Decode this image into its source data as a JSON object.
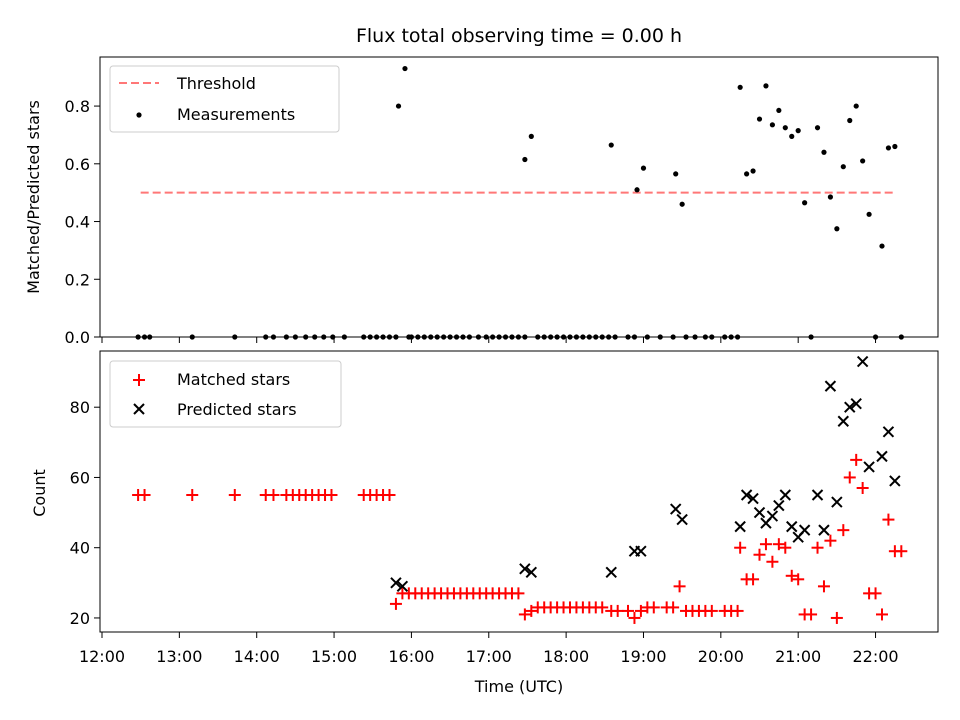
{
  "chart_data": [
    {
      "type": "scatter",
      "title": "Flux total observing time = 0.00 h",
      "xlabel": "",
      "ylabel": "Matched/Predicted stars",
      "xlim": [
        "12:00",
        "22:50"
      ],
      "ylim": [
        0,
        0.97
      ],
      "yticks": [
        "0.0",
        "0.2",
        "0.4",
        "0.6",
        "0.8"
      ],
      "legend_position": "top-left",
      "threshold": {
        "name": "Threshold",
        "value": 0.5,
        "x_range": [
          "12:30",
          "22:15"
        ],
        "color": "#ff7777",
        "style": "dashed"
      },
      "series": [
        {
          "name": "Measurements",
          "color": "#000000",
          "marker": "dot",
          "points": [
            [
              "12:28",
              0
            ],
            [
              "12:33",
              0
            ],
            [
              "12:37",
              0
            ],
            [
              "13:10",
              0
            ],
            [
              "13:43",
              0
            ],
            [
              "14:07",
              0
            ],
            [
              "14:13",
              0
            ],
            [
              "14:23",
              0
            ],
            [
              "14:30",
              0
            ],
            [
              "14:38",
              0
            ],
            [
              "14:45",
              0
            ],
            [
              "14:52",
              0
            ],
            [
              "14:59",
              0
            ],
            [
              "15:08",
              0
            ],
            [
              "15:23",
              0
            ],
            [
              "15:28",
              0
            ],
            [
              "15:33",
              0
            ],
            [
              "15:38",
              0
            ],
            [
              "15:43",
              0
            ],
            [
              "15:48",
              0
            ],
            [
              "15:50",
              0.8
            ],
            [
              "15:55",
              0.93
            ],
            [
              "15:58",
              0
            ],
            [
              "16:00",
              0
            ],
            [
              "16:05",
              0
            ],
            [
              "16:10",
              0
            ],
            [
              "16:15",
              0
            ],
            [
              "16:20",
              0
            ],
            [
              "16:25",
              0
            ],
            [
              "16:30",
              0
            ],
            [
              "16:35",
              0
            ],
            [
              "16:40",
              0
            ],
            [
              "16:45",
              0
            ],
            [
              "16:52",
              0
            ],
            [
              "16:58",
              0
            ],
            [
              "17:03",
              0
            ],
            [
              "17:08",
              0
            ],
            [
              "17:13",
              0
            ],
            [
              "17:18",
              0
            ],
            [
              "17:23",
              0
            ],
            [
              "17:28",
              0
            ],
            [
              "17:28",
              0.615
            ],
            [
              "17:33",
              0.695
            ],
            [
              "17:38",
              0
            ],
            [
              "17:43",
              0
            ],
            [
              "17:48",
              0
            ],
            [
              "17:53",
              0
            ],
            [
              "17:58",
              0
            ],
            [
              "18:03",
              0
            ],
            [
              "18:08",
              0
            ],
            [
              "18:13",
              0
            ],
            [
              "18:18",
              0
            ],
            [
              "18:23",
              0
            ],
            [
              "18:28",
              0
            ],
            [
              "18:33",
              0
            ],
            [
              "18:35",
              0.665
            ],
            [
              "18:38",
              0
            ],
            [
              "18:48",
              0
            ],
            [
              "18:53",
              0
            ],
            [
              "18:55",
              0.51
            ],
            [
              "19:00",
              0.585
            ],
            [
              "19:03",
              0
            ],
            [
              "19:13",
              0
            ],
            [
              "19:23",
              0
            ],
            [
              "19:25",
              0.565
            ],
            [
              "19:30",
              0.46
            ],
            [
              "19:33",
              0
            ],
            [
              "19:40",
              0
            ],
            [
              "19:48",
              0
            ],
            [
              "19:53",
              0
            ],
            [
              "20:03",
              0
            ],
            [
              "20:08",
              0
            ],
            [
              "20:13",
              0
            ],
            [
              "20:15",
              0.865
            ],
            [
              "20:20",
              0.565
            ],
            [
              "20:25",
              0.575
            ],
            [
              "20:30",
              0.755
            ],
            [
              "20:35",
              0.87
            ],
            [
              "20:40",
              0.735
            ],
            [
              "20:45",
              0.785
            ],
            [
              "20:50",
              0.725
            ],
            [
              "20:55",
              0.695
            ],
            [
              "21:00",
              0.715
            ],
            [
              "21:05",
              0.465
            ],
            [
              "21:10",
              0
            ],
            [
              "21:15",
              0.725
            ],
            [
              "21:20",
              0.64
            ],
            [
              "21:25",
              0.485
            ],
            [
              "21:30",
              0.375
            ],
            [
              "21:35",
              0.59
            ],
            [
              "21:40",
              0.75
            ],
            [
              "21:45",
              0.8
            ],
            [
              "21:50",
              0.61
            ],
            [
              "21:55",
              0.425
            ],
            [
              "22:00",
              0
            ],
            [
              "22:05",
              0.315
            ],
            [
              "22:10",
              0.655
            ],
            [
              "22:15",
              0.66
            ],
            [
              "22:20",
              0
            ]
          ]
        }
      ]
    },
    {
      "type": "scatter",
      "title": "",
      "xlabel": "Time (UTC)",
      "ylabel": "Count",
      "xlim": [
        "12:00",
        "22:50"
      ],
      "ylim": [
        16,
        96
      ],
      "xticks": [
        "12:00",
        "13:00",
        "14:00",
        "15:00",
        "16:00",
        "17:00",
        "18:00",
        "19:00",
        "20:00",
        "21:00",
        "22:00"
      ],
      "yticks": [
        "20",
        "40",
        "60",
        "80"
      ],
      "legend_position": "top-left",
      "series": [
        {
          "name": "Matched stars",
          "color": "#ff0000",
          "marker": "plus",
          "points": [
            [
              "12:28",
              55
            ],
            [
              "12:33",
              55
            ],
            [
              "13:10",
              55
            ],
            [
              "13:43",
              55
            ],
            [
              "14:07",
              55
            ],
            [
              "14:13",
              55
            ],
            [
              "14:23",
              55
            ],
            [
              "14:28",
              55
            ],
            [
              "14:33",
              55
            ],
            [
              "14:38",
              55
            ],
            [
              "14:43",
              55
            ],
            [
              "14:48",
              55
            ],
            [
              "14:53",
              55
            ],
            [
              "14:58",
              55
            ],
            [
              "15:23",
              55
            ],
            [
              "15:28",
              55
            ],
            [
              "15:33",
              55
            ],
            [
              "15:38",
              55
            ],
            [
              "15:43",
              55
            ],
            [
              "15:48",
              24
            ],
            [
              "15:53",
              27
            ],
            [
              "15:58",
              27
            ],
            [
              "16:03",
              27
            ],
            [
              "16:08",
              27
            ],
            [
              "16:13",
              27
            ],
            [
              "16:18",
              27
            ],
            [
              "16:23",
              27
            ],
            [
              "16:28",
              27
            ],
            [
              "16:33",
              27
            ],
            [
              "16:38",
              27
            ],
            [
              "16:43",
              27
            ],
            [
              "16:48",
              27
            ],
            [
              "16:53",
              27
            ],
            [
              "16:58",
              27
            ],
            [
              "17:03",
              27
            ],
            [
              "17:08",
              27
            ],
            [
              "17:13",
              27
            ],
            [
              "17:18",
              27
            ],
            [
              "17:23",
              27
            ],
            [
              "17:28",
              21
            ],
            [
              "17:33",
              22
            ],
            [
              "17:38",
              23
            ],
            [
              "17:43",
              23
            ],
            [
              "17:48",
              23
            ],
            [
              "17:53",
              23
            ],
            [
              "17:58",
              23
            ],
            [
              "18:03",
              23
            ],
            [
              "18:08",
              23
            ],
            [
              "18:13",
              23
            ],
            [
              "18:18",
              23
            ],
            [
              "18:23",
              23
            ],
            [
              "18:28",
              23
            ],
            [
              "18:35",
              22
            ],
            [
              "18:40",
              22
            ],
            [
              "18:48",
              22
            ],
            [
              "18:53",
              20
            ],
            [
              "18:58",
              22
            ],
            [
              "19:03",
              23
            ],
            [
              "19:08",
              23
            ],
            [
              "19:18",
              23
            ],
            [
              "19:23",
              23
            ],
            [
              "19:28",
              29
            ],
            [
              "19:33",
              22
            ],
            [
              "19:38",
              22
            ],
            [
              "19:43",
              22
            ],
            [
              "19:48",
              22
            ],
            [
              "19:53",
              22
            ],
            [
              "20:03",
              22
            ],
            [
              "20:08",
              22
            ],
            [
              "20:13",
              22
            ],
            [
              "20:15",
              40
            ],
            [
              "20:20",
              31
            ],
            [
              "20:25",
              31
            ],
            [
              "20:30",
              38
            ],
            [
              "20:35",
              41
            ],
            [
              "20:40",
              36
            ],
            [
              "20:45",
              41
            ],
            [
              "20:50",
              40
            ],
            [
              "20:55",
              32
            ],
            [
              "21:00",
              31
            ],
            [
              "21:05",
              21
            ],
            [
              "21:10",
              21
            ],
            [
              "21:15",
              40
            ],
            [
              "21:20",
              29
            ],
            [
              "21:25",
              42
            ],
            [
              "21:30",
              20
            ],
            [
              "21:35",
              45
            ],
            [
              "21:40",
              60
            ],
            [
              "21:45",
              65
            ],
            [
              "21:50",
              57
            ],
            [
              "21:55",
              27
            ],
            [
              "22:00",
              27
            ],
            [
              "22:05",
              21
            ],
            [
              "22:10",
              48
            ],
            [
              "22:15",
              39
            ],
            [
              "22:20",
              39
            ]
          ]
        },
        {
          "name": "Predicted stars",
          "color": "#000000",
          "marker": "x",
          "points": [
            [
              "15:48",
              30
            ],
            [
              "15:53",
              29
            ],
            [
              "17:28",
              34
            ],
            [
              "17:33",
              33
            ],
            [
              "18:35",
              33
            ],
            [
              "18:53",
              39
            ],
            [
              "18:58",
              39
            ],
            [
              "19:25",
              51
            ],
            [
              "19:30",
              48
            ],
            [
              "20:15",
              46
            ],
            [
              "20:20",
              55
            ],
            [
              "20:25",
              54
            ],
            [
              "20:30",
              50
            ],
            [
              "20:35",
              47
            ],
            [
              "20:40",
              49
            ],
            [
              "20:45",
              52
            ],
            [
              "20:50",
              55
            ],
            [
              "20:55",
              46
            ],
            [
              "21:00",
              43
            ],
            [
              "21:05",
              45
            ],
            [
              "21:15",
              55
            ],
            [
              "21:20",
              45
            ],
            [
              "21:25",
              86
            ],
            [
              "21:30",
              53
            ],
            [
              "21:35",
              76
            ],
            [
              "21:40",
              80
            ],
            [
              "21:45",
              81
            ],
            [
              "21:50",
              93
            ],
            [
              "21:55",
              63
            ],
            [
              "22:05",
              66
            ],
            [
              "22:10",
              73
            ],
            [
              "22:15",
              59
            ]
          ]
        }
      ]
    }
  ]
}
